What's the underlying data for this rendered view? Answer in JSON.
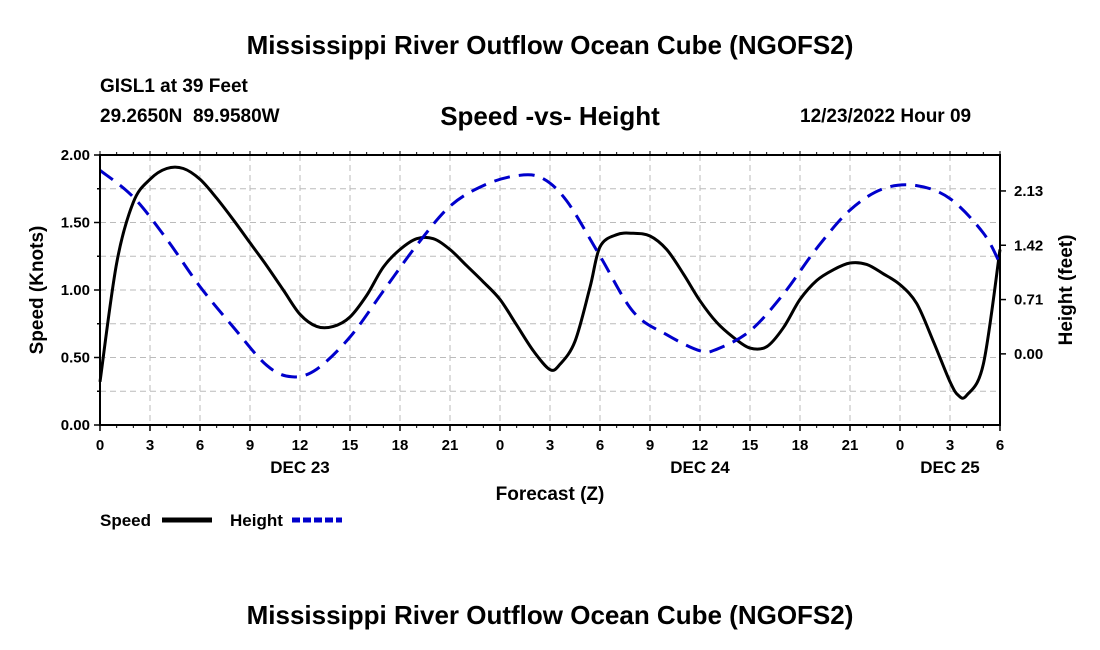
{
  "page_title": "Mississippi River Outflow Ocean Cube (NGOFS2)",
  "station": {
    "name": "GISL1 at 39 Feet",
    "coords": "29.2650N  89.9580W"
  },
  "subtitle": "Speed -vs- Height",
  "date_label": "12/23/2022 Hour 09",
  "legend": {
    "speed": "Speed",
    "height": "Height"
  },
  "footer_title": "Mississippi River Outflow Ocean Cube (NGOFS2)",
  "colors": {
    "speed": "#000000",
    "height": "#0000cc",
    "grid": "#bbbbbb"
  },
  "chart_data": {
    "type": "line",
    "title": "Speed -vs- Height",
    "xlabel": "Forecast (Z)",
    "ylabel": "Speed (Knots)",
    "y2label": "Height (feet)",
    "xlim": [
      0,
      54
    ],
    "ylim": [
      0,
      2.0
    ],
    "y2lim": [
      -0.93,
      2.6
    ],
    "x_ticks": [
      0,
      3,
      6,
      9,
      12,
      15,
      18,
      21,
      24,
      27,
      30,
      33,
      36,
      39,
      42,
      45,
      48,
      51,
      54
    ],
    "x_tick_labels": [
      "0",
      "3",
      "6",
      "9",
      "12",
      "15",
      "18",
      "21",
      "0",
      "3",
      "6",
      "9",
      "12",
      "15",
      "18",
      "21",
      "0",
      "3",
      "6"
    ],
    "date_labels": [
      {
        "x": 12,
        "label": "DEC 23"
      },
      {
        "x": 36,
        "label": "DEC 24"
      },
      {
        "x": 51,
        "label": "DEC 25"
      }
    ],
    "y_ticks": [
      0,
      0.5,
      1.0,
      1.5,
      2.0
    ],
    "y_tick_labels": [
      "0.00",
      "0.50",
      "1.00",
      "1.50",
      "2.00"
    ],
    "y2_ticks": [
      0.0,
      0.71,
      1.42,
      2.13
    ],
    "y2_tick_labels": [
      "0.00",
      "0.71",
      "1.42",
      "2.13"
    ],
    "grid": true,
    "series": [
      {
        "name": "Speed",
        "axis": "left",
        "style": "solid",
        "x": [
          0,
          1,
          2,
          3,
          4,
          5,
          6,
          7,
          8,
          9,
          10,
          11,
          12,
          13,
          14,
          15,
          16,
          17,
          18,
          19,
          20,
          21,
          22,
          23,
          24,
          25,
          26,
          27,
          27.6,
          28.5,
          29.4,
          30,
          31,
          32,
          33,
          34,
          35,
          36,
          37,
          38,
          39,
          40,
          41,
          42,
          43,
          44,
          45,
          46,
          47,
          48,
          49,
          50,
          51,
          51.5,
          52,
          53,
          54
        ],
        "y": [
          0.32,
          1.2,
          1.65,
          1.82,
          1.9,
          1.9,
          1.82,
          1.68,
          1.52,
          1.35,
          1.18,
          1.0,
          0.82,
          0.73,
          0.73,
          0.8,
          0.96,
          1.17,
          1.3,
          1.38,
          1.38,
          1.3,
          1.18,
          1.06,
          0.93,
          0.74,
          0.55,
          0.41,
          0.45,
          0.62,
          1.02,
          1.32,
          1.41,
          1.42,
          1.4,
          1.3,
          1.12,
          0.92,
          0.76,
          0.65,
          0.57,
          0.58,
          0.72,
          0.93,
          1.07,
          1.15,
          1.2,
          1.19,
          1.12,
          1.04,
          0.9,
          0.62,
          0.32,
          0.22,
          0.22,
          0.45,
          1.3
        ]
      },
      {
        "name": "Height",
        "axis": "right",
        "style": "dashed",
        "x": [
          0,
          2,
          4,
          6,
          8,
          10,
          11.5,
          13,
          15,
          17,
          19,
          21,
          23,
          25,
          26.5,
          28,
          30,
          32,
          34,
          36,
          37,
          39,
          41,
          43,
          45,
          47,
          49,
          51,
          53,
          54
        ],
        "y": [
          2.4,
          2.05,
          1.5,
          0.88,
          0.35,
          -0.15,
          -0.3,
          -0.2,
          0.22,
          0.82,
          1.42,
          1.93,
          2.2,
          2.33,
          2.3,
          2.0,
          1.28,
          0.55,
          0.25,
          0.04,
          0.06,
          0.3,
          0.78,
          1.38,
          1.88,
          2.16,
          2.2,
          2.03,
          1.58,
          1.18
        ]
      }
    ]
  }
}
